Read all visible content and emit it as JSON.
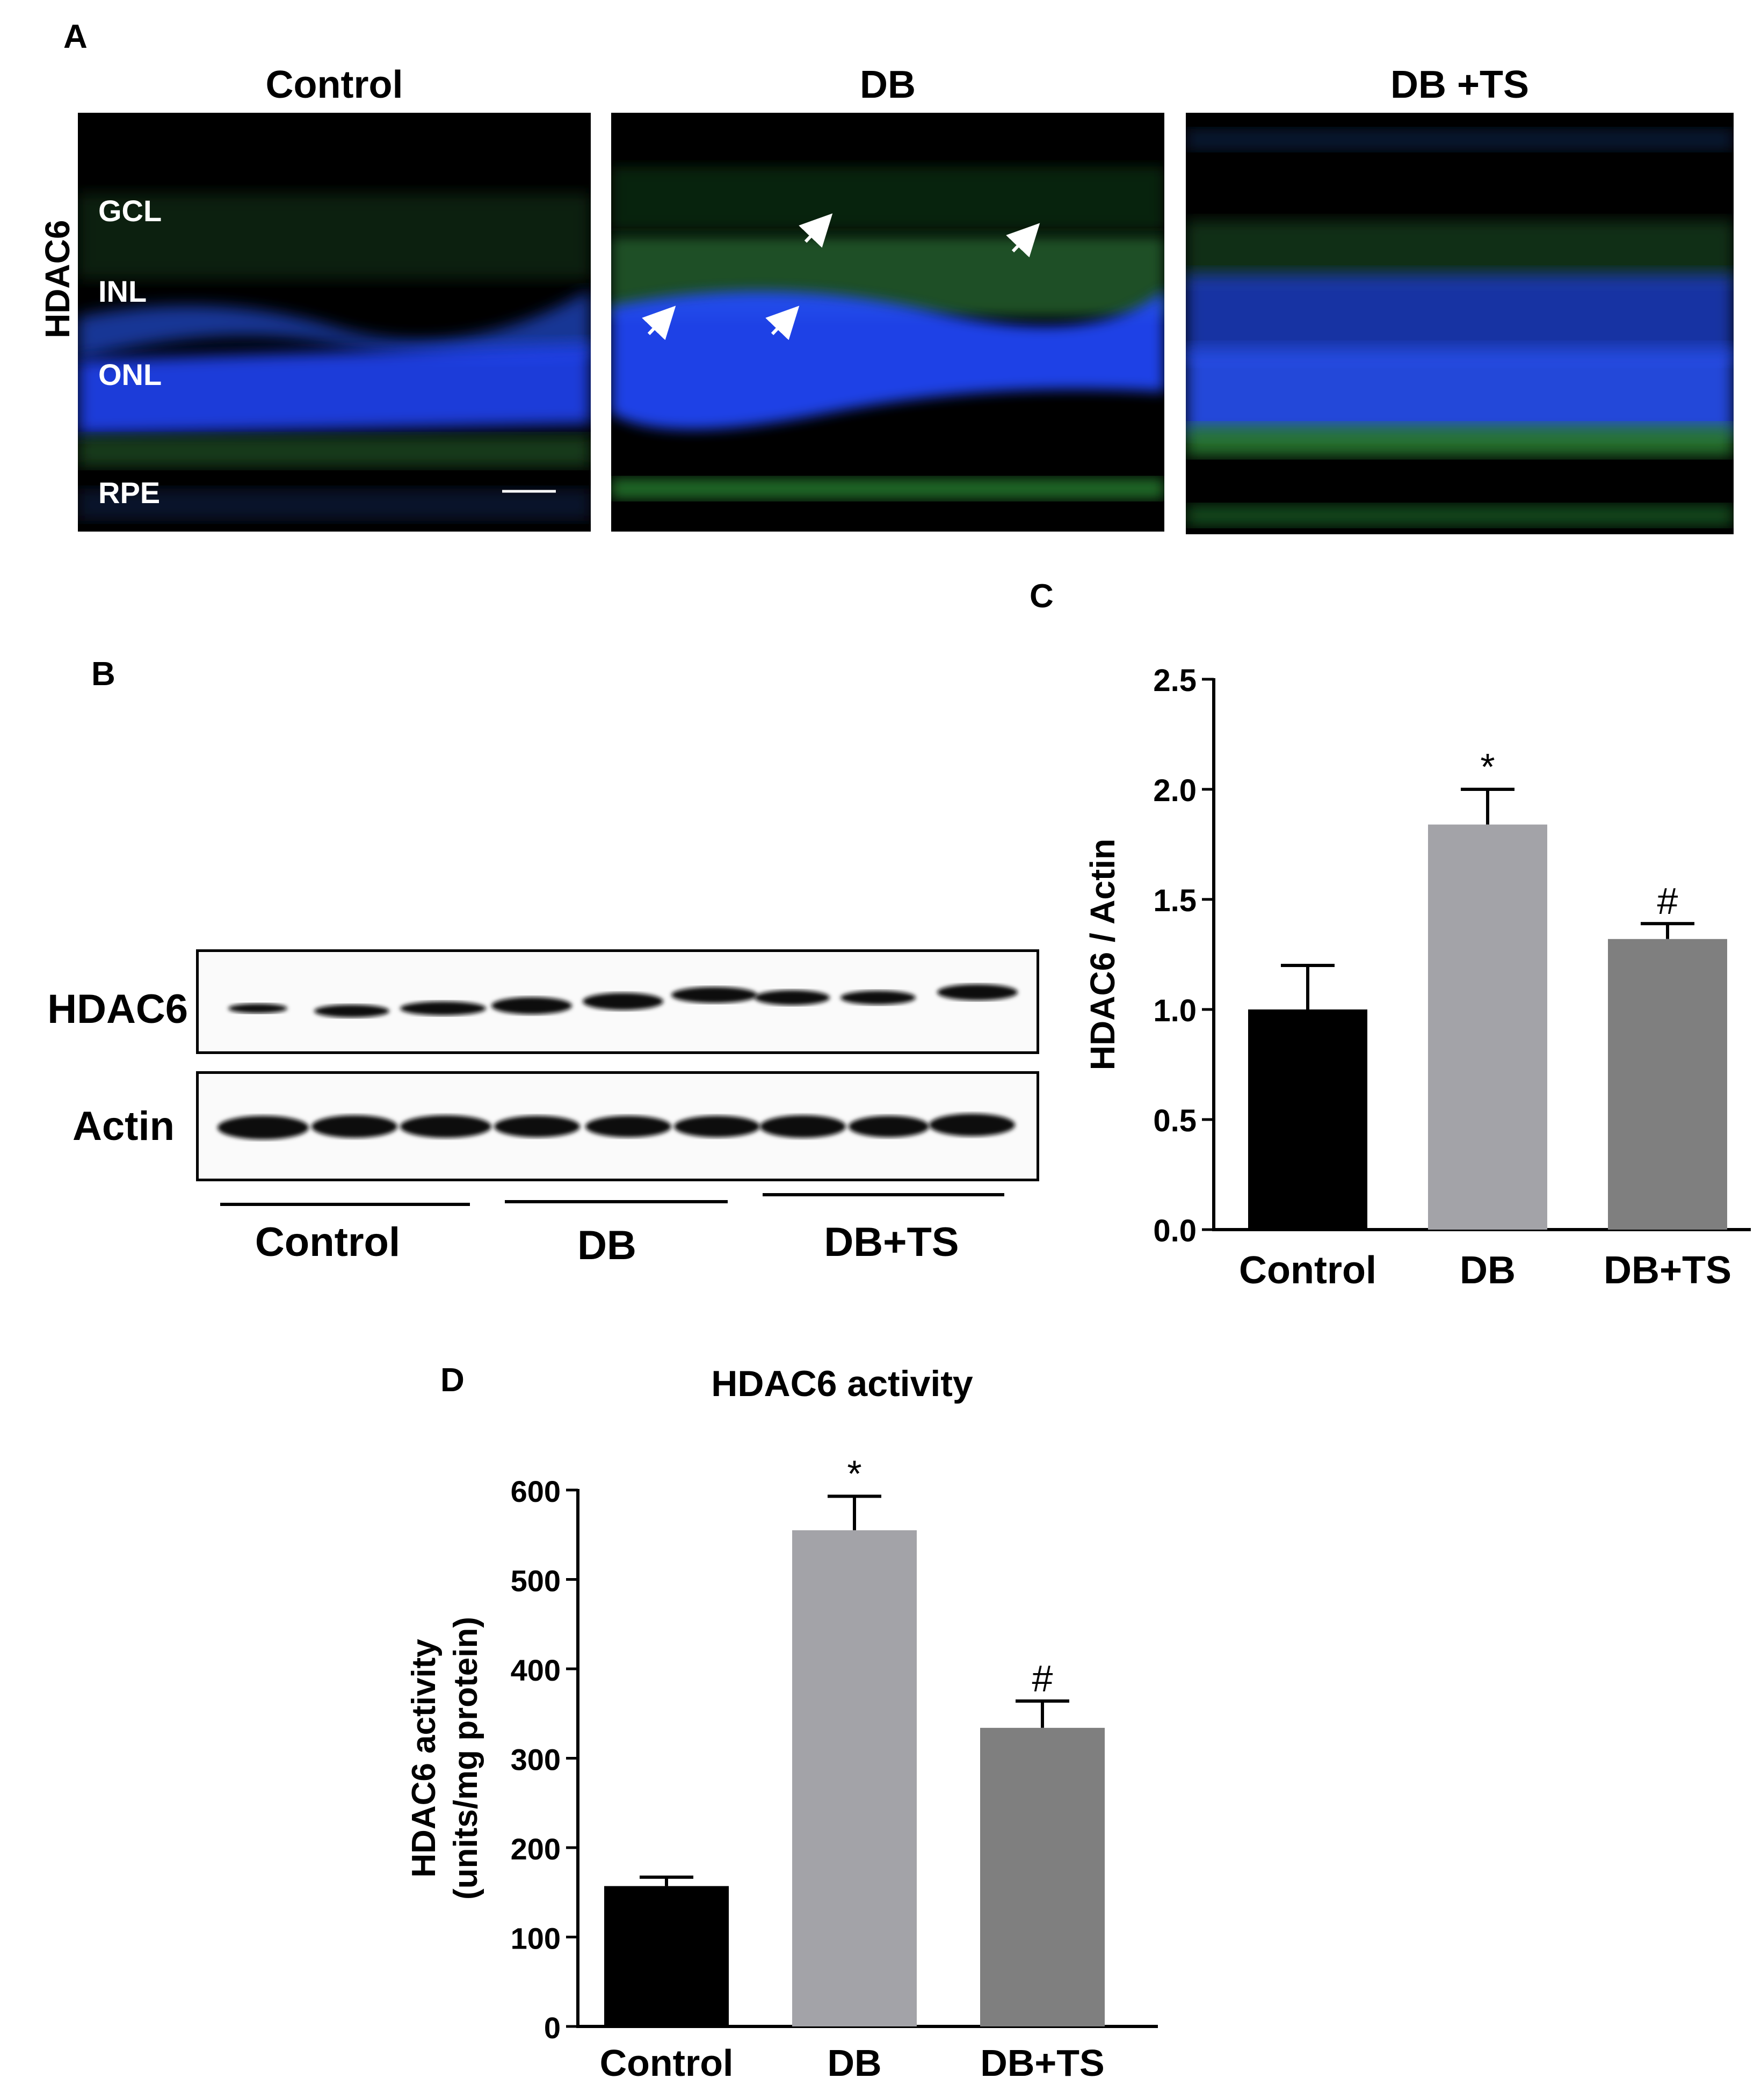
{
  "panel_a": {
    "letter": "A",
    "titles": [
      "Control",
      "DB",
      "DB +TS"
    ],
    "row_label": "HDAC6",
    "layer_labels": [
      "GCL",
      "INL",
      "ONL",
      "RPE"
    ],
    "colors": {
      "nuclei": "#1a3cff",
      "hdac6": "#2f9e2f",
      "background": "#000000"
    }
  },
  "panel_b": {
    "letter": "B",
    "blot_labels": [
      "HDAC6",
      "Actin"
    ],
    "group_labels": [
      "Control",
      "DB",
      "DB+TS"
    ]
  },
  "chart_data": [
    {
      "panel": "C",
      "type": "bar",
      "categories": [
        "Control",
        "DB",
        "DB+TS"
      ],
      "values": [
        1.0,
        1.84,
        1.32
      ],
      "errors": [
        0.2,
        0.16,
        0.07
      ],
      "significance": [
        "",
        "*",
        "#"
      ],
      "colors": [
        "#000000",
        "#a3a3a8",
        "#7f7f7f"
      ],
      "title": "",
      "xlabel": "",
      "ylabel": "HDAC6 / Actin",
      "ylim": [
        0,
        2.5
      ],
      "yticks": [
        "0.0",
        "0.5",
        "1.0",
        "1.5",
        "2.0",
        "2.5"
      ],
      "grid": false
    },
    {
      "panel": "D",
      "type": "bar",
      "categories": [
        "Control",
        "DB",
        "DB+TS"
      ],
      "values": [
        157,
        555,
        334
      ],
      "errors": [
        10,
        38,
        30
      ],
      "significance": [
        "",
        "*",
        "#"
      ],
      "colors": [
        "#000000",
        "#a3a3a8",
        "#7f7f7f"
      ],
      "title": "HDAC6 activity",
      "xlabel": "",
      "ylabel": [
        "HDAC6 activity",
        "(units/mg protein)"
      ],
      "ylim": [
        0,
        600
      ],
      "yticks": [
        "0",
        "100",
        "200",
        "300",
        "400",
        "500",
        "600"
      ],
      "grid": false
    }
  ]
}
